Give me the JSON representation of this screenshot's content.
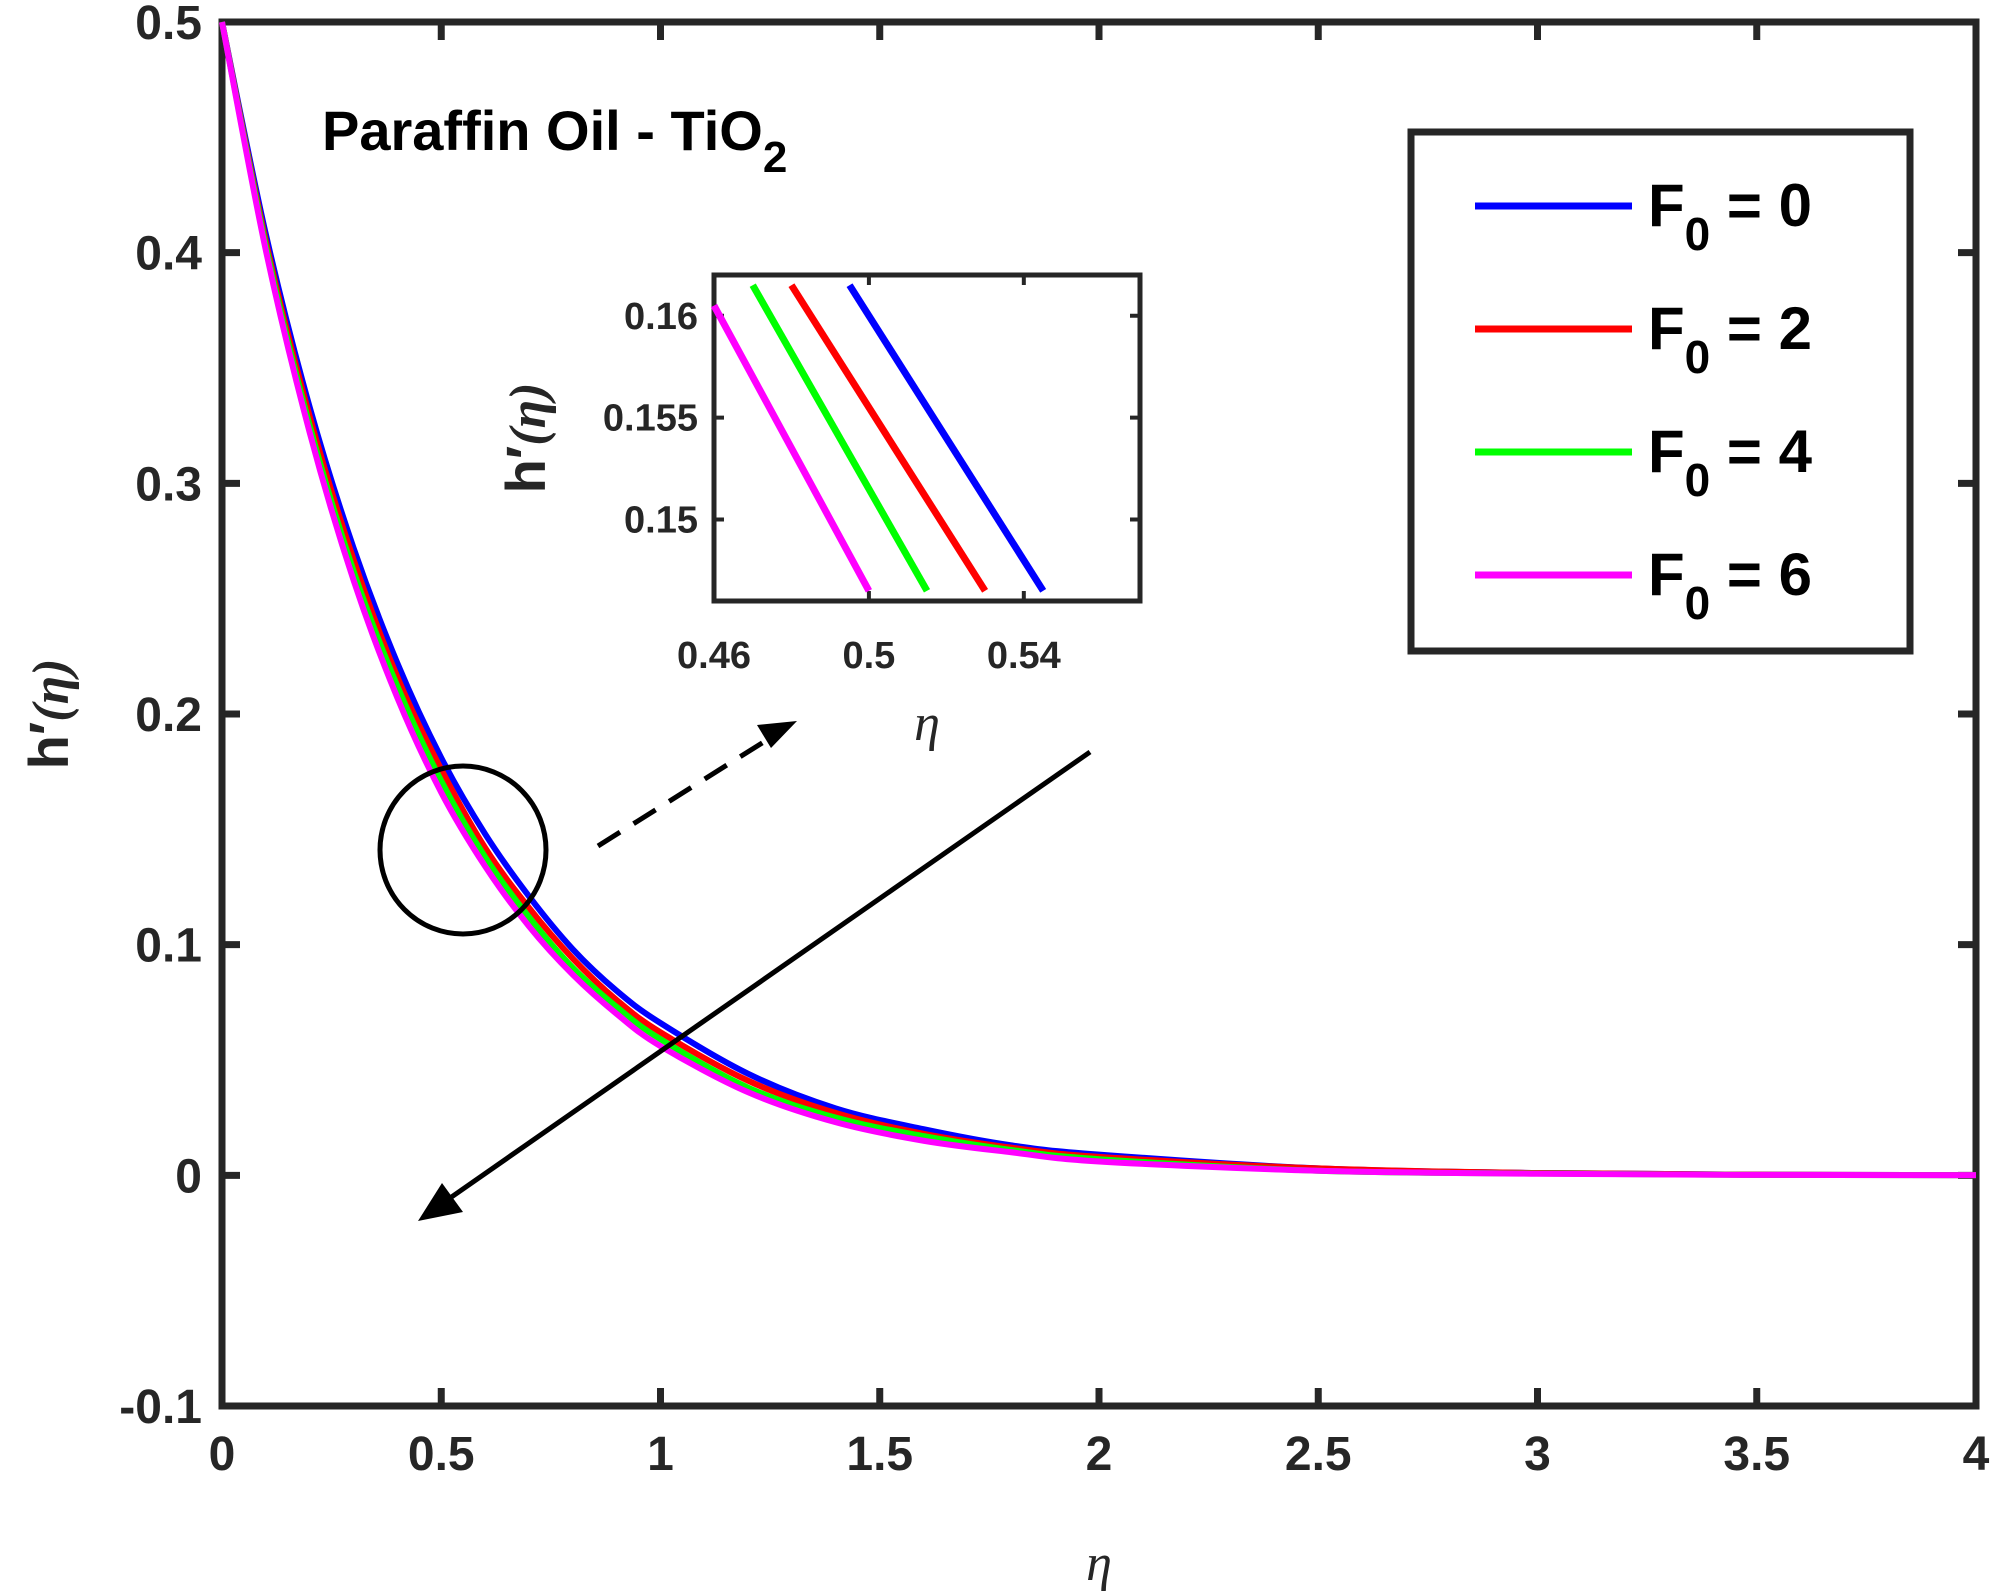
{
  "chart_data": {
    "type": "line",
    "title": "",
    "annotation": {
      "text": "Paraffin Oil - TiO",
      "sub": "2"
    },
    "xlabel": "η",
    "ylabel": {
      "main": "h",
      "prime": "′",
      "arg": "(η)"
    },
    "xlim": [
      0,
      4
    ],
    "ylim": [
      -0.1,
      0.5
    ],
    "xticks": [
      "0",
      "0.5",
      "1",
      "1.5",
      "2",
      "2.5",
      "3",
      "3.5",
      "4"
    ],
    "yticks": [
      "-0.1",
      "0",
      "0.1",
      "0.2",
      "0.3",
      "0.4",
      "0.5"
    ],
    "legend_position": "top-right",
    "series": [
      {
        "name": "F",
        "sub": "0",
        "eq": " = 0",
        "color": "#0000ff",
        "x": [
          0,
          0.1,
          0.2,
          0.3,
          0.4,
          0.5,
          0.6,
          0.7,
          0.8,
          0.9,
          1.0,
          1.2,
          1.4,
          1.6,
          1.8,
          2.0,
          2.5,
          3.0,
          3.5,
          4.0
        ],
        "y": [
          0.5,
          0.408,
          0.333,
          0.272,
          0.222,
          0.181,
          0.148,
          0.121,
          0.098,
          0.08,
          0.066,
          0.044,
          0.029,
          0.02,
          0.013,
          0.009,
          0.003,
          0.001,
          0.0003,
          0.0001
        ]
      },
      {
        "name": "F",
        "sub": "0",
        "eq": " = 2",
        "color": "#ff0000",
        "x": [
          0,
          0.1,
          0.2,
          0.3,
          0.4,
          0.5,
          0.6,
          0.7,
          0.8,
          0.9,
          1.0,
          1.2,
          1.4,
          1.6,
          1.8,
          2.0,
          2.5,
          3.0,
          3.5,
          4.0
        ],
        "y": [
          0.5,
          0.405,
          0.329,
          0.267,
          0.216,
          0.176,
          0.142,
          0.116,
          0.094,
          0.076,
          0.062,
          0.041,
          0.027,
          0.018,
          0.012,
          0.008,
          0.003,
          0.001,
          0.0003,
          0.0001
        ]
      },
      {
        "name": "F",
        "sub": "0",
        "eq": " = 4",
        "color": "#00ff00",
        "x": [
          0,
          0.1,
          0.2,
          0.3,
          0.4,
          0.5,
          0.6,
          0.7,
          0.8,
          0.9,
          1.0,
          1.2,
          1.4,
          1.6,
          1.8,
          2.0,
          2.5,
          3.0,
          3.5,
          4.0
        ],
        "y": [
          0.5,
          0.403,
          0.325,
          0.262,
          0.212,
          0.171,
          0.138,
          0.112,
          0.09,
          0.073,
          0.059,
          0.038,
          0.025,
          0.017,
          0.011,
          0.007,
          0.002,
          0.0008,
          0.0002,
          0.0001
        ]
      },
      {
        "name": "F",
        "sub": "0",
        "eq": " = 6",
        "color": "#ff00ff",
        "x": [
          0,
          0.1,
          0.2,
          0.3,
          0.4,
          0.5,
          0.6,
          0.7,
          0.8,
          0.9,
          1.0,
          1.2,
          1.4,
          1.6,
          1.8,
          2.0,
          2.5,
          3.0,
          3.5,
          4.0
        ],
        "y": [
          0.5,
          0.401,
          0.322,
          0.258,
          0.207,
          0.166,
          0.134,
          0.108,
          0.087,
          0.07,
          0.056,
          0.036,
          0.023,
          0.015,
          0.01,
          0.006,
          0.002,
          0.0007,
          0.0002,
          0.0001
        ]
      }
    ],
    "inset": {
      "xlim": [
        0.46,
        0.57
      ],
      "ylim": [
        0.146,
        0.162
      ],
      "xticks": [
        "0.46",
        "0.5",
        "0.54"
      ],
      "yticks": [
        "0.15",
        "0.155",
        "0.16"
      ],
      "xlabel": "η",
      "ylabel": {
        "main": "h",
        "prime": "′",
        "arg": "(η)"
      },
      "segments": [
        {
          "color": "#0000ff",
          "x": [
            0.495,
            0.545
          ],
          "y": [
            0.1615,
            0.1465
          ]
        },
        {
          "color": "#ff0000",
          "x": [
            0.48,
            0.53
          ],
          "y": [
            0.1615,
            0.1465
          ]
        },
        {
          "color": "#00ff00",
          "x": [
            0.47,
            0.515
          ],
          "y": [
            0.1615,
            0.1465
          ]
        },
        {
          "color": "#ff00ff",
          "x": [
            0.46,
            0.5
          ],
          "y": [
            0.1605,
            0.1465
          ]
        }
      ]
    }
  }
}
